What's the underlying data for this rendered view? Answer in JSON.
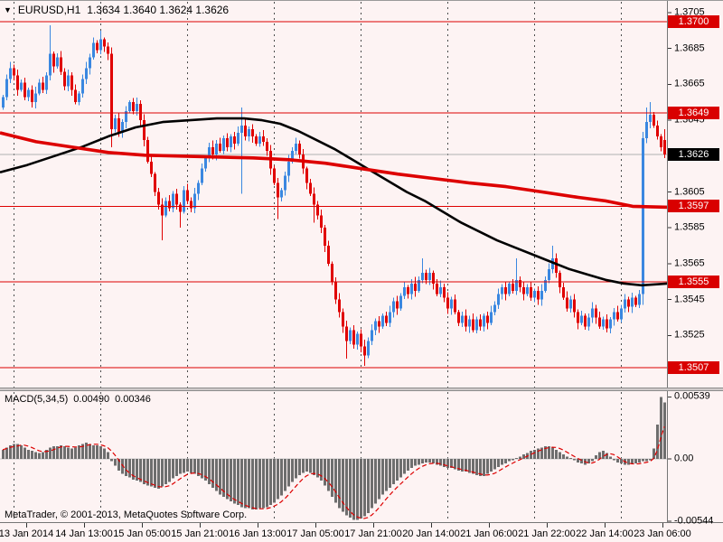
{
  "app": {
    "name": "MetaTrader chart window"
  },
  "header": {
    "symbol": "EURUSD,H1",
    "ohlc": "1.3634 1.3640 1.3624 1.3626"
  },
  "footer": {
    "copyright": "MetaTrader, © 2001-2013, MetaQuotes Software Corp."
  },
  "colors": {
    "background": "#fdf3f3",
    "bull": "#3a87e0",
    "bear": "#e00000",
    "ma_slow_red": "#dd0000",
    "ma_fast_black": "#000000",
    "level_line": "#dd0000",
    "current_price_line": "#b0b0b0",
    "badge_red": "#d90000",
    "badge_black": "#000000",
    "histogram": "#6e6e6e",
    "signal": "#dd0000",
    "grid": "#4d4d4d",
    "axis_tick": "#333333",
    "zero_line": "#c9c9c9"
  },
  "chart_data": {
    "type": "candlestick",
    "symbol": "EURUSD",
    "timeframe": "H1",
    "title": "EURUSD,H1 1.3634 1.3640 1.3624 1.3626",
    "legend_position": "none",
    "grid": "vertical-dashed-only",
    "price_axis": {
      "side": "right",
      "ticks": [
        "1.3705",
        "1.3685",
        "1.3665",
        "1.3645",
        "1.3605",
        "1.3585",
        "1.3565",
        "1.3545",
        "1.3525"
      ],
      "range": {
        "top": 1.37115,
        "bottom": 1.3496
      }
    },
    "levels": [
      {
        "price": 1.37,
        "label": "1.3700"
      },
      {
        "price": 1.3649,
        "label": "1.3649"
      },
      {
        "price": 1.3597,
        "label": "1.3597"
      },
      {
        "price": 1.3555,
        "label": "1.3555"
      },
      {
        "price": 1.3507,
        "label": "1.3507"
      }
    ],
    "current_price": 1.3626,
    "current_price_label": "1.3626",
    "time_labels": [
      "13 Jan 2014",
      "14 Jan 13:00",
      "15 Jan 05:00",
      "15 Jan 21:00",
      "16 Jan 13:00",
      "17 Jan 05:00",
      "17 Jan 21:00",
      "20 Jan 14:00",
      "21 Jan 06:00",
      "21 Jan 22:00",
      "22 Jan 14:00",
      "23 Jan 06:00"
    ],
    "candles": {
      "first_open": 1.3652,
      "closes": [
        1.3658,
        1.3668,
        1.3674,
        1.367,
        1.3662,
        1.3666,
        1.3658,
        1.3662,
        1.3655,
        1.366,
        1.3666,
        1.3662,
        1.367,
        1.3682,
        1.3675,
        1.368,
        1.3672,
        1.3664,
        1.367,
        1.3662,
        1.3655,
        1.366,
        1.3668,
        1.3674,
        1.368,
        1.3688,
        1.3684,
        1.369,
        1.3686,
        1.3682,
        1.364,
        1.3646,
        1.3638,
        1.3644,
        1.365,
        1.3655,
        1.365,
        1.3654,
        1.3645,
        1.3634,
        1.3622,
        1.3615,
        1.3605,
        1.3598,
        1.3592,
        1.36,
        1.3596,
        1.3604,
        1.3598,
        1.3594,
        1.3606,
        1.36,
        1.3596,
        1.3604,
        1.361,
        1.3618,
        1.3624,
        1.363,
        1.3626,
        1.3632,
        1.3628,
        1.3635,
        1.363,
        1.3636,
        1.3632,
        1.3638,
        1.3642,
        1.3636,
        1.364,
        1.3636,
        1.3632,
        1.3636,
        1.3633,
        1.3628,
        1.3618,
        1.361,
        1.3602,
        1.3606,
        1.3614,
        1.3622,
        1.3628,
        1.3632,
        1.3626,
        1.3618,
        1.361,
        1.3604,
        1.3598,
        1.3592,
        1.3585,
        1.3575,
        1.3565,
        1.3555,
        1.3545,
        1.3538,
        1.353,
        1.3522,
        1.3528,
        1.352,
        1.3526,
        1.3519,
        1.3514,
        1.3522,
        1.3528,
        1.3533,
        1.353,
        1.3536,
        1.3532,
        1.3538,
        1.3544,
        1.354,
        1.3547,
        1.3552,
        1.3548,
        1.3554,
        1.355,
        1.3556,
        1.356,
        1.3556,
        1.356,
        1.3554,
        1.3548,
        1.3552,
        1.3546,
        1.354,
        1.3545,
        1.3538,
        1.3532,
        1.3536,
        1.353,
        1.3534,
        1.3528,
        1.3534,
        1.353,
        1.3536,
        1.3532,
        1.3538,
        1.3542,
        1.3548,
        1.3552,
        1.3548,
        1.3554,
        1.355,
        1.3556,
        1.3552,
        1.3548,
        1.3552,
        1.3546,
        1.355,
        1.3545,
        1.355,
        1.3556,
        1.3562,
        1.3568,
        1.356,
        1.3552,
        1.3546,
        1.354,
        1.3545,
        1.3538,
        1.3532,
        1.3536,
        1.353,
        1.3535,
        1.354,
        1.3535,
        1.353,
        1.3534,
        1.3529,
        1.3534,
        1.3538,
        1.3534,
        1.354,
        1.3545,
        1.3541,
        1.3546,
        1.3542,
        1.3548,
        1.3635,
        1.3644,
        1.3648,
        1.3642,
        1.3636,
        1.363,
        1.3626
      ],
      "overrides": {
        "13": {
          "h": 1.3698
        },
        "27": {
          "h": 1.3695
        },
        "30": {
          "l": 1.363
        },
        "44": {
          "l": 1.3578
        },
        "49": {
          "l": 1.3585
        },
        "66": {
          "h": 1.3652,
          "l": 1.3604
        },
        "76": {
          "l": 1.359
        },
        "86": {
          "l": 1.3588
        },
        "95": {
          "l": 1.3512
        },
        "100": {
          "l": 1.3508
        },
        "116": {
          "h": 1.3568
        },
        "142": {
          "h": 1.3568
        },
        "152": {
          "h": 1.3575
        },
        "177": {
          "l": 1.3542
        },
        "178": {
          "h": 1.3652
        },
        "179": {
          "h": 1.3655
        },
        "183": {
          "o": 1.3634,
          "h": 1.364,
          "l": 1.3624,
          "c": 1.3626
        }
      }
    },
    "ma_slow_red": [
      [
        0,
        1.3638
      ],
      [
        40,
        1.3633
      ],
      [
        80,
        1.363
      ],
      [
        120,
        1.3627
      ],
      [
        160,
        1.36255
      ],
      [
        200,
        1.3625
      ],
      [
        240,
        1.36245
      ],
      [
        280,
        1.3624
      ],
      [
        320,
        1.3623
      ],
      [
        360,
        1.3621
      ],
      [
        400,
        1.3618
      ],
      [
        440,
        1.3615
      ],
      [
        480,
        1.36125
      ],
      [
        520,
        1.361
      ],
      [
        560,
        1.3608
      ],
      [
        600,
        1.3605
      ],
      [
        640,
        1.3602
      ],
      [
        670,
        1.36
      ],
      [
        700,
        1.3597
      ],
      [
        740,
        1.35965
      ]
    ],
    "ma_fast_black": [
      [
        0,
        1.3616
      ],
      [
        30,
        1.362
      ],
      [
        60,
        1.3625
      ],
      [
        90,
        1.363
      ],
      [
        120,
        1.3636
      ],
      [
        150,
        1.3641
      ],
      [
        180,
        1.3644
      ],
      [
        210,
        1.3645
      ],
      [
        240,
        1.3646
      ],
      [
        270,
        1.3646
      ],
      [
        290,
        1.3645
      ],
      [
        310,
        1.3643
      ],
      [
        330,
        1.3639
      ],
      [
        350,
        1.3634
      ],
      [
        370,
        1.3629
      ],
      [
        390,
        1.3623
      ],
      [
        410,
        1.3617
      ],
      [
        430,
        1.3611
      ],
      [
        450,
        1.3605
      ],
      [
        470,
        1.36
      ],
      [
        490,
        1.3594
      ],
      [
        510,
        1.3588
      ],
      [
        530,
        1.3583
      ],
      [
        550,
        1.3578
      ],
      [
        570,
        1.3574
      ],
      [
        590,
        1.357
      ],
      [
        610,
        1.3566
      ],
      [
        630,
        1.3562
      ],
      [
        650,
        1.3559
      ],
      [
        670,
        1.3556
      ],
      [
        690,
        1.3554
      ],
      [
        710,
        1.3553
      ],
      [
        740,
        1.3554
      ]
    ],
    "macd": {
      "name": "MACD(5,34,5)",
      "value": "0.00490",
      "signal": "0.00346",
      "axis": [
        "0.00539",
        "0.00",
        "-0.00544"
      ],
      "range": {
        "top": 0.0059,
        "bottom": -0.0055
      },
      "signal_period": 5,
      "values_scale": 0.0001,
      "values": [
        8,
        10,
        12,
        13,
        13,
        12,
        10,
        8,
        7,
        6,
        5,
        6,
        8,
        10,
        11,
        11,
        12,
        11,
        10,
        9,
        10,
        12,
        13,
        14,
        13,
        12,
        12,
        11,
        9,
        6,
        -2,
        -6,
        -10,
        -13,
        -15,
        -16,
        -18,
        -19,
        -20,
        -22,
        -23,
        -24,
        -25,
        -26,
        -24,
        -22,
        -20,
        -17,
        -15,
        -13,
        -12,
        -11,
        -12,
        -13,
        -15,
        -17,
        -19,
        -22,
        -25,
        -28,
        -31,
        -33,
        -35,
        -37,
        -39,
        -40,
        -42,
        -43,
        -43,
        -44,
        -44,
        -43,
        -43,
        -42,
        -40,
        -38,
        -35,
        -32,
        -28,
        -24,
        -20,
        -17,
        -14,
        -12,
        -11,
        -12,
        -14,
        -16,
        -19,
        -23,
        -28,
        -33,
        -38,
        -43,
        -46,
        -49,
        -51,
        -53,
        -53,
        -52,
        -50,
        -47,
        -43,
        -39,
        -35,
        -31,
        -28,
        -25,
        -22,
        -19,
        -16,
        -13,
        -10,
        -8,
        -6,
        -5,
        -4,
        -3,
        -3,
        -4,
        -5,
        -6,
        -7,
        -8,
        -8,
        -9,
        -10,
        -11,
        -11,
        -12,
        -13,
        -14,
        -15,
        -15,
        -13,
        -11,
        -9,
        -7,
        -5,
        -4,
        -2,
        -1,
        1,
        2,
        4,
        5,
        7,
        8,
        9,
        10,
        11,
        11,
        10,
        8,
        6,
        4,
        2,
        1,
        -1,
        -3,
        -4,
        -5,
        -4,
        -2,
        3,
        6,
        7,
        5,
        2,
        -1,
        -3,
        -4,
        -5,
        -5,
        -4,
        -4,
        -3,
        -2,
        -2,
        -1,
        9,
        30,
        53.9,
        49
      ]
    }
  }
}
